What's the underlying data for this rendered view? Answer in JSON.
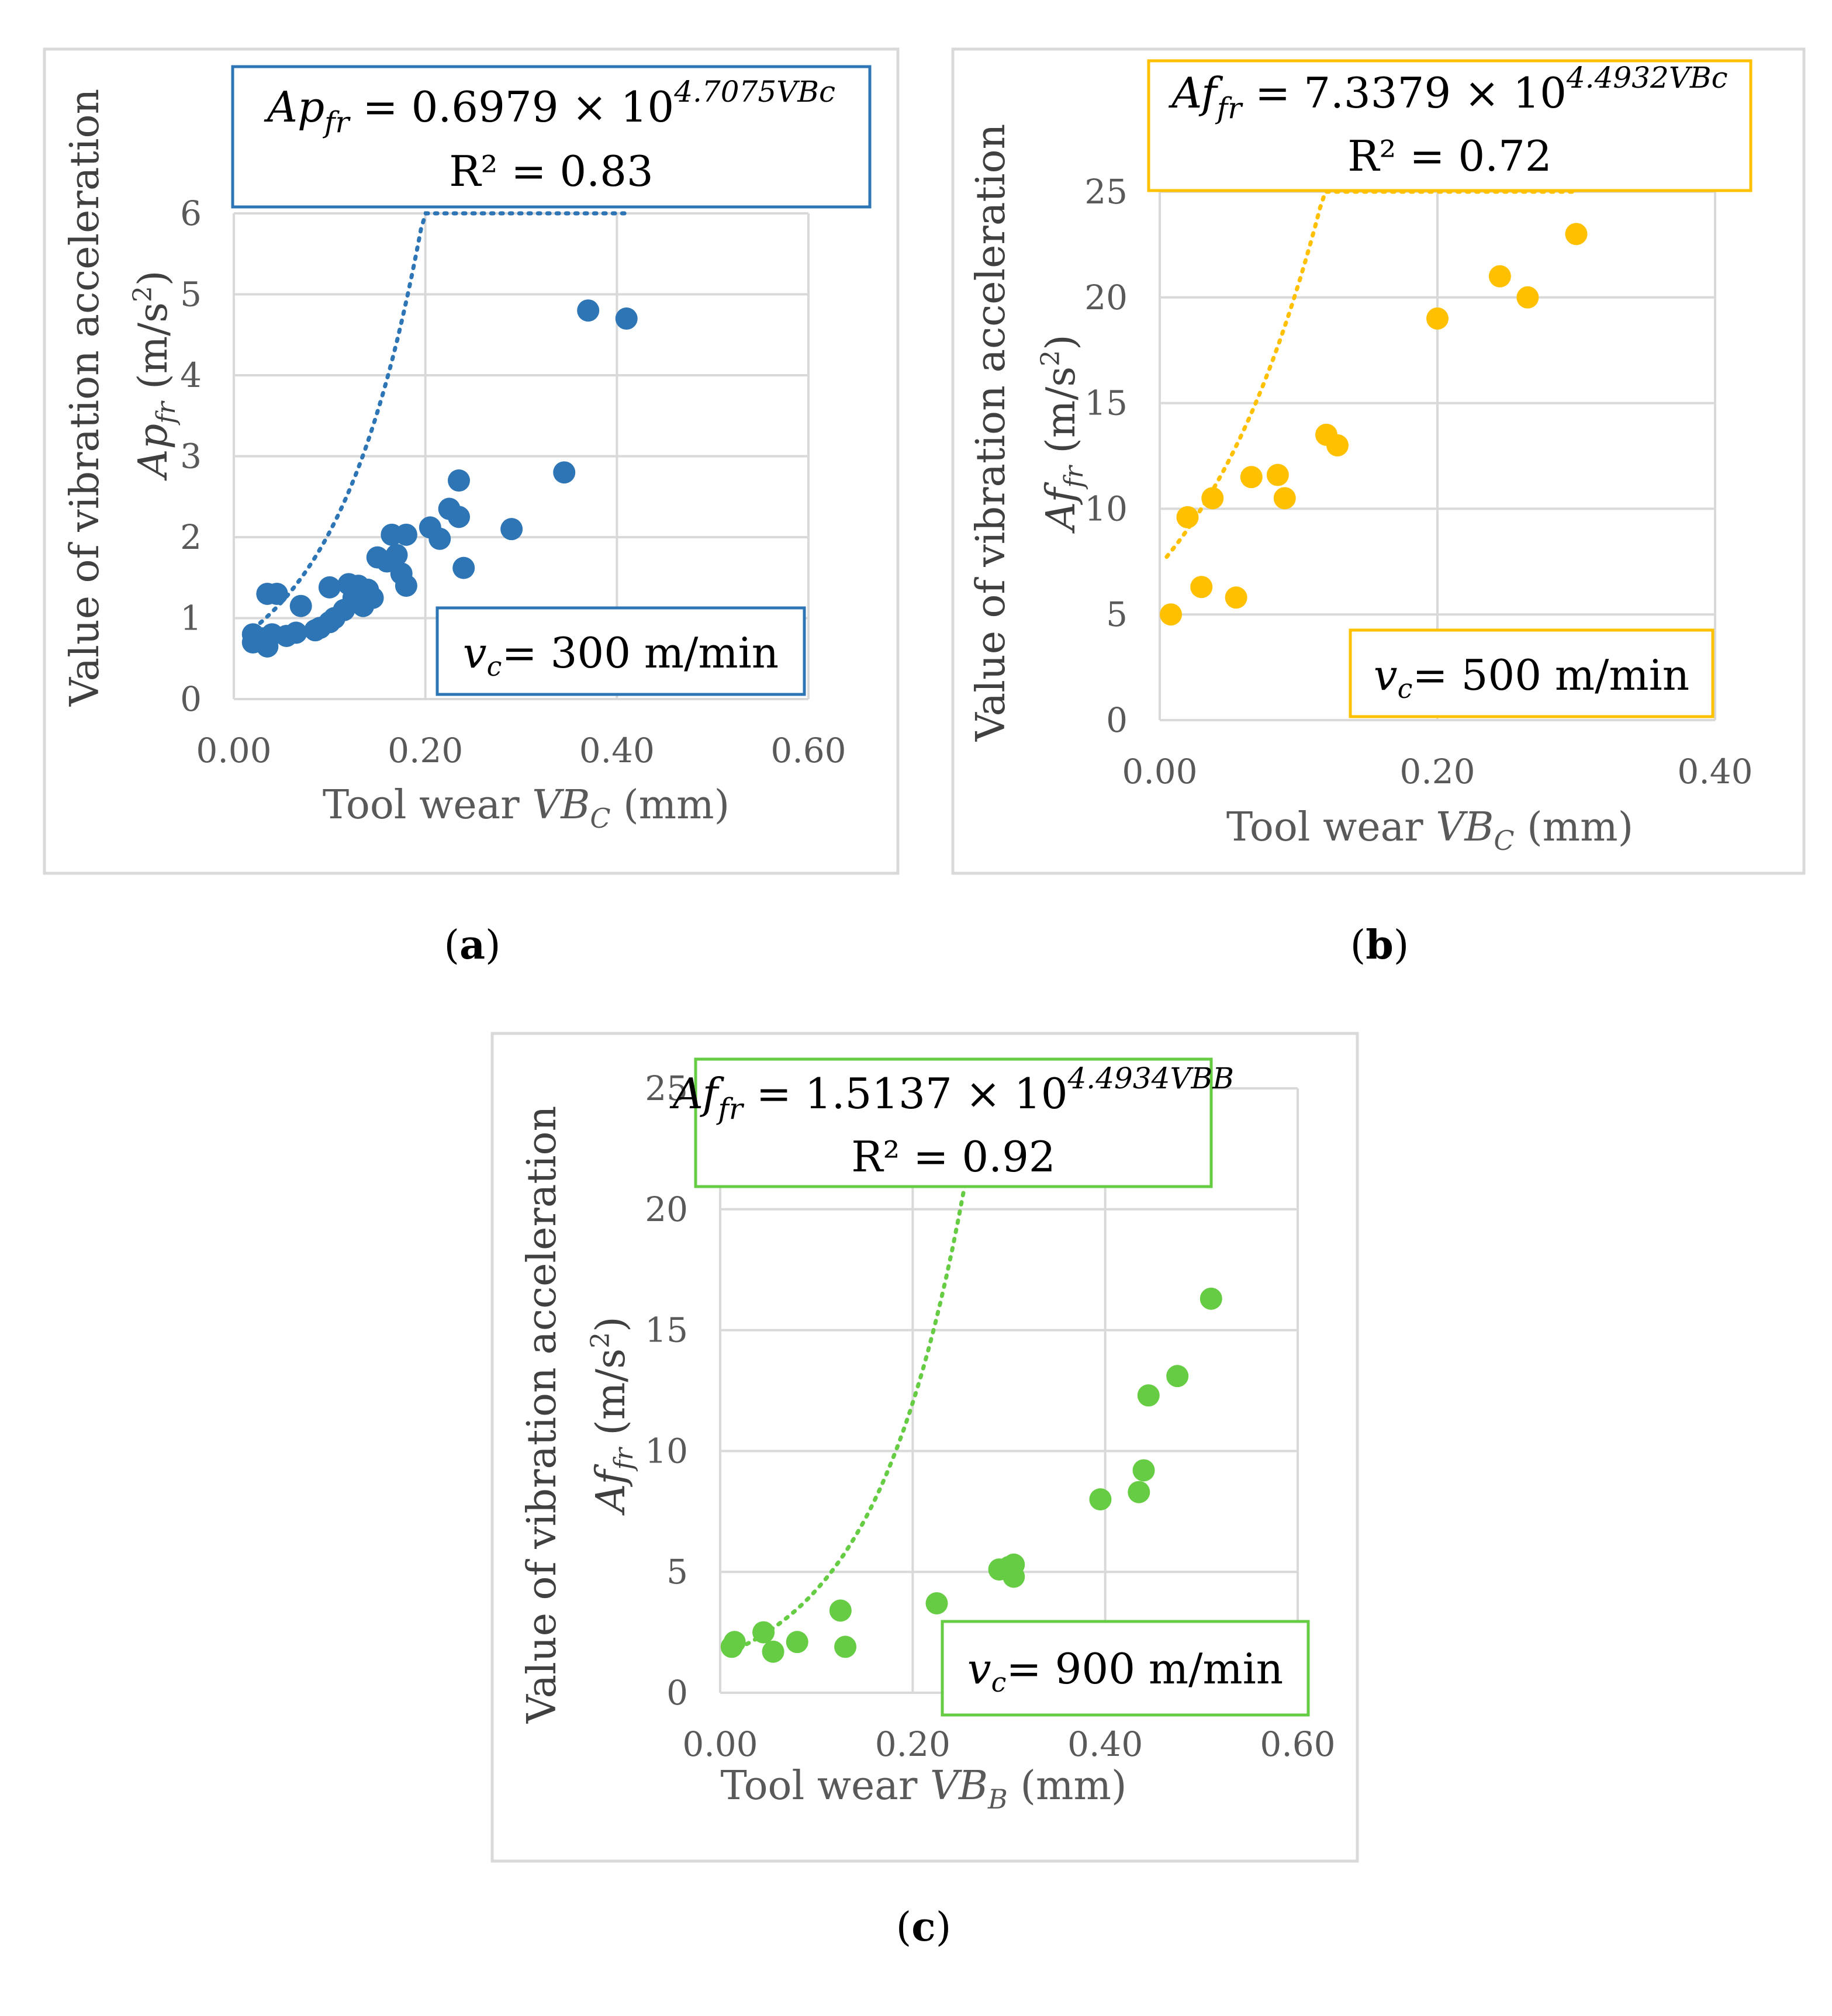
{
  "chart_data": [
    {
      "id": "a",
      "type": "scatter",
      "panel_label": "(a)",
      "color": "#2E75B6",
      "xlim": [
        0,
        0.6
      ],
      "ylim": [
        0,
        6
      ],
      "xticks": [
        "0.00",
        "0.20",
        "0.40",
        "0.60"
      ],
      "yticks": [
        "0",
        "1",
        "2",
        "3",
        "4",
        "5",
        "6"
      ],
      "xlabel": "Tool wear VB_C (mm)",
      "ylabel": "Value of vibration acceleration",
      "ylabel2": "Ap_fr (m/s²)",
      "equation": "Ap_fr = 0.6979 × 10^4.7075VBc",
      "r2": "R² = 0.83",
      "speed": "v_c= 300 m/min",
      "grid": true,
      "trendline": {
        "type": "exponential",
        "a": 0.6979,
        "b": 4.7075,
        "base": 10,
        "x_range": [
          0.02,
          0.41
        ]
      },
      "points": [
        [
          0.02,
          0.8
        ],
        [
          0.02,
          0.7
        ],
        [
          0.03,
          0.75
        ],
        [
          0.035,
          0.65
        ],
        [
          0.04,
          0.8
        ],
        [
          0.035,
          1.3
        ],
        [
          0.045,
          1.3
        ],
        [
          0.055,
          0.78
        ],
        [
          0.065,
          0.82
        ],
        [
          0.07,
          1.15
        ],
        [
          0.085,
          0.85
        ],
        [
          0.09,
          0.88
        ],
        [
          0.1,
          0.95
        ],
        [
          0.105,
          1.0
        ],
        [
          0.1,
          1.38
        ],
        [
          0.115,
          1.1
        ],
        [
          0.12,
          1.42
        ],
        [
          0.125,
          1.25
        ],
        [
          0.13,
          1.4
        ],
        [
          0.135,
          1.15
        ],
        [
          0.14,
          1.35
        ],
        [
          0.145,
          1.25
        ],
        [
          0.15,
          1.75
        ],
        [
          0.16,
          1.7
        ],
        [
          0.165,
          2.03
        ],
        [
          0.17,
          1.78
        ],
        [
          0.175,
          1.55
        ],
        [
          0.18,
          1.4
        ],
        [
          0.18,
          2.03
        ],
        [
          0.205,
          2.12
        ],
        [
          0.215,
          1.98
        ],
        [
          0.225,
          2.35
        ],
        [
          0.235,
          2.25
        ],
        [
          0.235,
          2.7
        ],
        [
          0.24,
          1.62
        ],
        [
          0.29,
          2.1
        ],
        [
          0.345,
          2.8
        ],
        [
          0.37,
          4.8
        ],
        [
          0.41,
          4.7
        ]
      ]
    },
    {
      "id": "b",
      "type": "scatter",
      "panel_label": "(b)",
      "color": "#FFC000",
      "xlim": [
        0,
        0.4
      ],
      "ylim": [
        0,
        25
      ],
      "xticks": [
        "0.00",
        "0.20",
        "0.40"
      ],
      "yticks": [
        "0",
        "5",
        "10",
        "15",
        "20",
        "25"
      ],
      "xlabel": "Tool wear VB_C (mm)",
      "ylabel": "Value of vibration acceleration",
      "ylabel2": "Af_fr (m/s²)",
      "equation": "Af_fr = 7.3379 × 10^4.4932VBc",
      "r2": "R² = 0.72",
      "speed": "v_c= 500 m/min",
      "grid": true,
      "trendline": {
        "type": "exponential",
        "a": 7.3379,
        "b": 4.4932,
        "base": 10,
        "x_range": [
          0.005,
          0.3
        ]
      },
      "points": [
        [
          0.008,
          5.0
        ],
        [
          0.02,
          9.6
        ],
        [
          0.03,
          6.3
        ],
        [
          0.038,
          10.5
        ],
        [
          0.055,
          5.8
        ],
        [
          0.066,
          11.5
        ],
        [
          0.085,
          11.6
        ],
        [
          0.09,
          10.5
        ],
        [
          0.12,
          13.5
        ],
        [
          0.128,
          13.0
        ],
        [
          0.2,
          19.0
        ],
        [
          0.245,
          21.0
        ],
        [
          0.265,
          20.0
        ],
        [
          0.3,
          23.0
        ]
      ]
    },
    {
      "id": "c",
      "type": "scatter",
      "panel_label": "(c)",
      "color": "#66CC44",
      "xlim": [
        0,
        0.6
      ],
      "ylim": [
        0,
        25
      ],
      "xticks": [
        "0.00",
        "0.20",
        "0.40",
        "0.60"
      ],
      "yticks": [
        "0",
        "5",
        "10",
        "15",
        "20",
        "25"
      ],
      "xlabel": "Tool wear VB_B (mm)",
      "ylabel": "Value of vibration acceleration",
      "ylabel2": "Af_fr (m/s²)",
      "equation": "Af_fr = 1.5137 × 10^4.4934VBB",
      "r2": "R² = 0.92",
      "speed": "v_c= 900 m/min",
      "grid": true,
      "trendline": {
        "type": "exponential",
        "a": 1.5137,
        "b": 4.4934,
        "base": 10,
        "x_range": [
          0.01,
          0.51
        ]
      },
      "points": [
        [
          0.012,
          1.9
        ],
        [
          0.015,
          2.1
        ],
        [
          0.045,
          2.5
        ],
        [
          0.055,
          1.7
        ],
        [
          0.08,
          2.1
        ],
        [
          0.125,
          3.4
        ],
        [
          0.13,
          1.9
        ],
        [
          0.225,
          3.7
        ],
        [
          0.29,
          5.1
        ],
        [
          0.3,
          5.2
        ],
        [
          0.305,
          4.8
        ],
        [
          0.305,
          5.3
        ],
        [
          0.395,
          8.0
        ],
        [
          0.435,
          8.3
        ],
        [
          0.44,
          9.2
        ],
        [
          0.445,
          12.3
        ],
        [
          0.475,
          13.1
        ],
        [
          0.51,
          16.3
        ]
      ]
    }
  ]
}
